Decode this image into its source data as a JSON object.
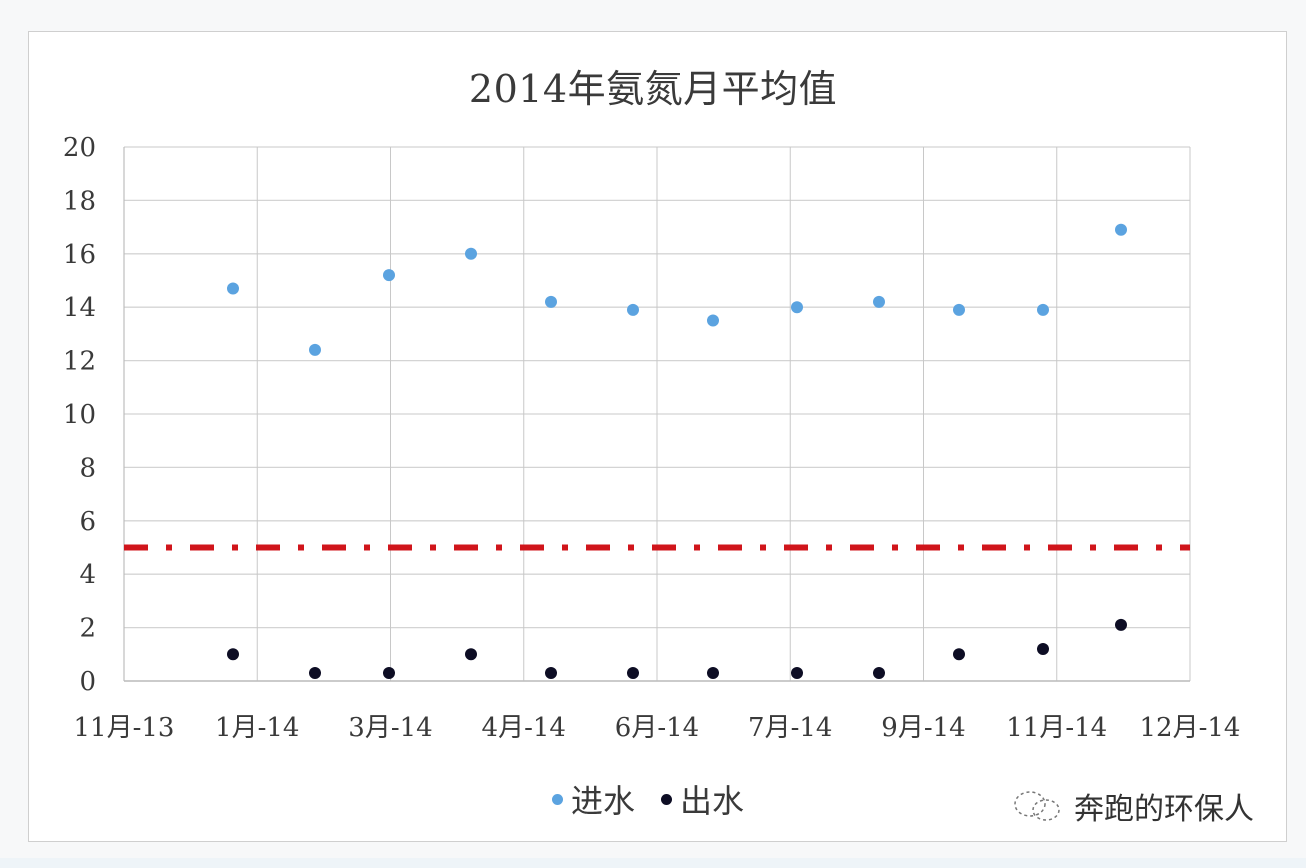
{
  "chart_data": {
    "type": "scatter",
    "title": "2014年氨氮月平均值",
    "xlabel": "",
    "ylabel": "",
    "ylim": [
      0,
      20
    ],
    "yticks": [
      "0",
      "2",
      "4",
      "6",
      "8",
      "10",
      "12",
      "14",
      "16",
      "18",
      "20"
    ],
    "xticks": [
      "11月-13",
      "1月-14",
      "3月-14",
      "4月-14",
      "6月-14",
      "7月-14",
      "9月-14",
      "11月-14",
      "12月-14"
    ],
    "grid": true,
    "legend_position": "bottom",
    "x": [
      "2014-01",
      "2014-02",
      "2014-03",
      "2014-04",
      "2014-05",
      "2014-06",
      "2014-07",
      "2014-08",
      "2014-09",
      "2014-10",
      "2014-11",
      "2014-12"
    ],
    "series": [
      {
        "name": "进水",
        "color": "#5ba3e0",
        "values": [
          14.7,
          12.4,
          15.2,
          16.0,
          14.2,
          13.9,
          13.5,
          14.0,
          14.2,
          13.9,
          13.9,
          16.9
        ]
      },
      {
        "name": "出水",
        "color": "#0d0d24",
        "values": [
          1.0,
          0.3,
          0.3,
          1.0,
          0.3,
          0.3,
          0.3,
          0.3,
          0.3,
          1.0,
          1.2,
          2.1
        ]
      }
    ],
    "reference_line": {
      "value": 5,
      "color": "#d0151b",
      "style": "dash-dot"
    }
  },
  "legend": {
    "items": [
      {
        "label": "进水",
        "color": "#5ba3e0"
      },
      {
        "label": "出水",
        "color": "#0d0d24"
      }
    ]
  },
  "watermark": {
    "text": "奔跑的环保人"
  }
}
